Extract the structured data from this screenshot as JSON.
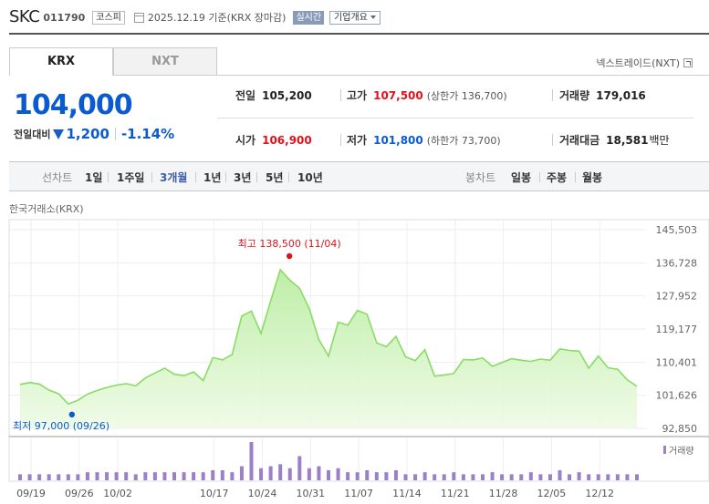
{
  "header": {
    "company": "SKC",
    "code": "011790",
    "market_badge": "코스피",
    "date_text": "2025.12.19  기준(KRX 장마감)",
    "realtime_badge": "실시간",
    "overview_button": "기업개요"
  },
  "tabs": [
    {
      "label": "KRX",
      "active": true
    },
    {
      "label": "NXT",
      "active": false
    }
  ],
  "nextrade_link": "넥스트레이드(NXT)",
  "price": {
    "current": "104,000",
    "change_label": "전일대비",
    "change": "1,200",
    "change_rate": "-1.14%",
    "direction": "down"
  },
  "stats": {
    "prev_close": {
      "label": "전일",
      "value": "105,200"
    },
    "high": {
      "label": "고가",
      "value": "107,500",
      "sub": "(상한가 136,700)"
    },
    "volume": {
      "label": "거래량",
      "value": "179,016"
    },
    "open": {
      "label": "시가",
      "value": "106,900"
    },
    "low": {
      "label": "저가",
      "value": "101,800",
      "sub": "(하한가 73,700)"
    },
    "amount": {
      "label": "거래대금",
      "value": "18,581",
      "unit": "백만"
    }
  },
  "period_bar": {
    "line_label": "선차트",
    "periods": [
      "1일",
      "1주일",
      "3개월",
      "1년",
      "3년",
      "5년",
      "10년"
    ],
    "active_period": "3개월",
    "candle_label": "봉차트",
    "candles": [
      "일봉",
      "주봉",
      "월봉"
    ]
  },
  "source_label": "한국거래소(KRX)",
  "colors": {
    "price_up": "#e0121b",
    "price_down": "#0b5ad0",
    "line": "#88dc63",
    "area": "#d4f5c4",
    "volume_bar": "#9b7fc9"
  },
  "chart_data": {
    "type": "area",
    "y_ticks": [
      "145,503",
      "136,728",
      "127,952",
      "119,177",
      "110,401",
      "101,626",
      "92,850"
    ],
    "ylim": [
      92850,
      145503
    ],
    "x_ticks": [
      "09/19",
      "09/26",
      "10/02",
      "10/17",
      "10/24",
      "10/31",
      "11/07",
      "11/14",
      "11/21",
      "11/28",
      "12/05",
      "12/12"
    ],
    "prices": [
      104500,
      105000,
      104600,
      103000,
      102000,
      99300,
      100300,
      101900,
      102900,
      103700,
      104300,
      104700,
      104100,
      106200,
      107500,
      108800,
      107200,
      106800,
      107800,
      105500,
      111600,
      111000,
      112400,
      122600,
      123900,
      118000,
      126600,
      134900,
      132100,
      130000,
      124600,
      116400,
      112000,
      121000,
      120200,
      124100,
      123100,
      115500,
      114500,
      117200,
      111800,
      110800,
      113700,
      106700,
      107000,
      107400,
      111100,
      111000,
      111500,
      109300,
      110300,
      111300,
      110900,
      110600,
      111200,
      110900,
      113900,
      113500,
      113300,
      108800,
      112000,
      108900,
      108500,
      105700,
      104000
    ],
    "volume": [
      3,
      3,
      3,
      3,
      3,
      3,
      3,
      4,
      4,
      4,
      4,
      4,
      3,
      4,
      4,
      4,
      4,
      4,
      4,
      4,
      5,
      5,
      4,
      7,
      19,
      6,
      7,
      8,
      6,
      12,
      6,
      7,
      5,
      6,
      4,
      4,
      5,
      4,
      4,
      5,
      3,
      3,
      4,
      3,
      3,
      4,
      3,
      3,
      3,
      4,
      3,
      3,
      3,
      4,
      3,
      3,
      5,
      3,
      4,
      3,
      3,
      3,
      3,
      3,
      3
    ],
    "annotations": {
      "high": {
        "label": "최고 138,500 (11/04)",
        "value": 138500,
        "index": 27
      },
      "low": {
        "label": "최저 97,000 (09/26)",
        "value": 97000,
        "index": 5
      }
    },
    "volume_legend": "거래량",
    "grid": true
  }
}
